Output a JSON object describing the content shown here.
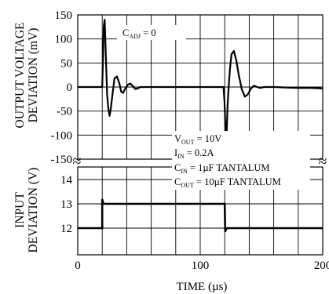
{
  "chart_data": [
    {
      "panel": "output",
      "type": "line",
      "ylabel_line1": "OUTPUT VOLTAGE",
      "ylabel_line2": "DEVIATION (mV)",
      "yticks": [
        "150",
        "100",
        "50",
        "0",
        "-50",
        "-100",
        "-150"
      ],
      "ylim": [
        -150,
        150
      ],
      "xlim": [
        0,
        200
      ],
      "grid": true,
      "annotation": {
        "main": "C",
        "sub": "ADJ",
        "rest": " = 0"
      },
      "series": [
        {
          "x": [
            0,
            20,
            20.6,
            21.3,
            22,
            23,
            24,
            25,
            26,
            27,
            28.5,
            30,
            32,
            34,
            35.5,
            37,
            39,
            41,
            43,
            45,
            47,
            49,
            51,
            53,
            55,
            58,
            60,
            100,
            119,
            119.8,
            120.5,
            121,
            121.6,
            122.3,
            123.2,
            124.3,
            125.5,
            127.5,
            129.5,
            131.5,
            134,
            136.5,
            139,
            141.5,
            144,
            146.5,
            149,
            152,
            155,
            160,
            170,
            180,
            190,
            200
          ],
          "y": [
            0,
            0,
            55,
            128,
            140,
            60,
            -15,
            -45,
            -60,
            -45,
            -12,
            18,
            22,
            8,
            -10,
            -12,
            -3,
            5,
            7,
            2,
            -4,
            -3,
            0,
            0,
            0,
            0,
            0,
            0,
            0,
            -30,
            -80,
            -103,
            -95,
            -40,
            0,
            38,
            68,
            75,
            55,
            25,
            -5,
            -20,
            -15,
            -3,
            3,
            0,
            -2,
            0,
            0,
            0,
            -1,
            -2,
            -2,
            -3
          ]
        }
      ]
    },
    {
      "panel": "input",
      "type": "line",
      "ylabel_line1": "INPUT",
      "ylabel_line2": "DEVIATION (V)",
      "yticks": [
        "14",
        "13",
        "12"
      ],
      "ylim": [
        11.3,
        14.3
      ],
      "xlim": [
        0,
        200
      ],
      "xticks": [
        "0",
        "100",
        "200"
      ],
      "xlabel": "TIME (µs)",
      "grid": true,
      "series": [
        {
          "x": [
            0,
            20,
            20,
            20.6,
            21.4,
            120,
            120.4,
            121,
            122,
            200
          ],
          "y": [
            12,
            12,
            13.2,
            13.05,
            13,
            13,
            11.85,
            11.95,
            12,
            12
          ]
        }
      ]
    }
  ],
  "conditions": [
    {
      "main": "V",
      "sub": "OUT",
      "rest": " = 10V"
    },
    {
      "main": "I",
      "sub": "IN",
      "rest": " = 0.2A"
    },
    {
      "main": "C",
      "sub": "IN",
      "rest": " = 1µF TANTALUM"
    },
    {
      "main": "C",
      "sub": "OUT",
      "rest": " = 10µF TANTALUM"
    }
  ],
  "break_symbol": "≈",
  "colors": {
    "line": "#000000",
    "grid": "#000000",
    "background": "#ffffff"
  }
}
